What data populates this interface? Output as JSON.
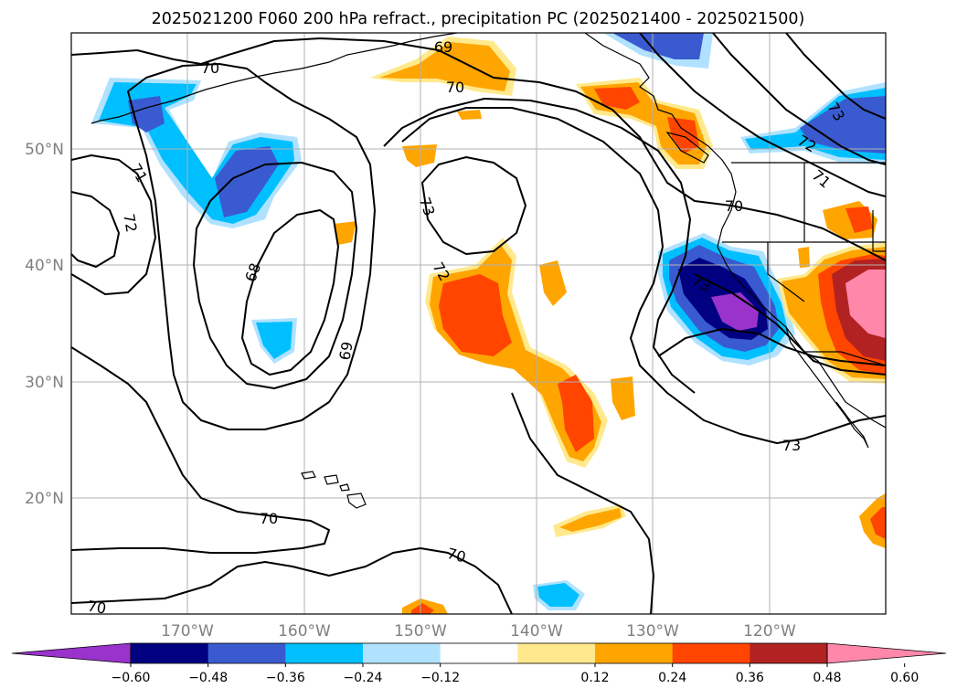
{
  "title": "2025021200 F060 200 hPa refract., precipitation PC (2025021400 - 2025021500)",
  "lat_labels": [
    "50°N",
    "40°N",
    "30°N",
    "20°N"
  ],
  "lon_labels": [
    "170°W",
    "160°W",
    "150°W",
    "140°W",
    "130°W",
    "120°W"
  ],
  "contour_labels": [
    "70",
    "69",
    "70",
    "71",
    "72",
    "73",
    "72",
    "73",
    "70",
    "71",
    "72",
    "73",
    "68",
    "69",
    "70",
    "70",
    "70",
    "73"
  ],
  "colorbar": {
    "ticks": [
      "−0.60",
      "−0.48",
      "−0.36",
      "−0.24",
      "−0.12",
      "0.12",
      "0.24",
      "0.36",
      "0.48",
      "0.60"
    ],
    "colors": [
      "#9933cc",
      "#000080",
      "#3a5bd0",
      "#00bfff",
      "#b0e2ff",
      "#ffffff",
      "#ffe98c",
      "#ffa500",
      "#ff4500",
      "#b22222",
      "#ff88aa"
    ]
  }
}
